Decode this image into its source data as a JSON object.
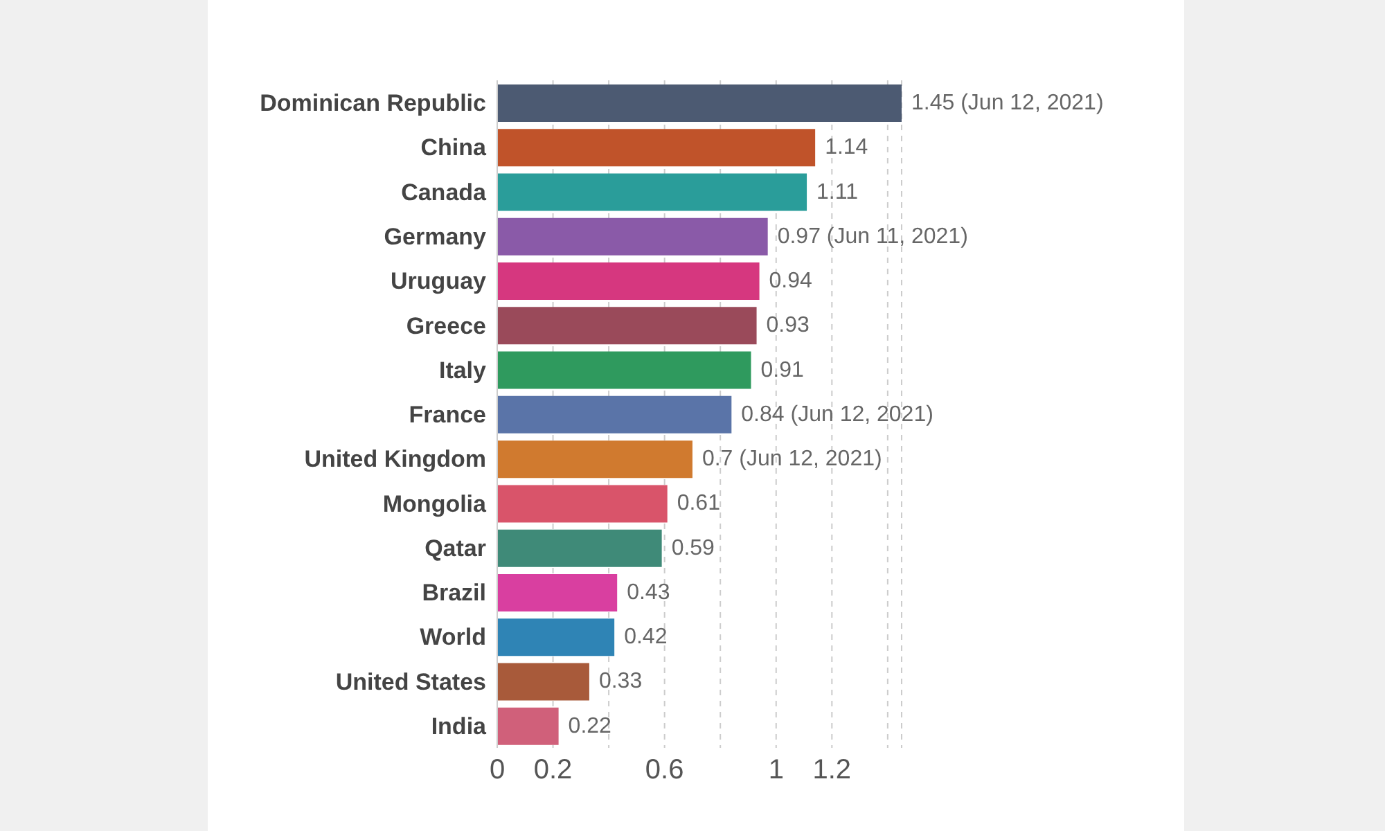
{
  "chart_data": {
    "type": "bar",
    "orientation": "horizontal",
    "categories": [
      "Dominican Republic",
      "China",
      "Canada",
      "Germany",
      "Uruguay",
      "Greece",
      "Italy",
      "France",
      "United Kingdom",
      "Mongolia",
      "Qatar",
      "Brazil",
      "World",
      "United States",
      "India"
    ],
    "values": [
      1.45,
      1.14,
      1.11,
      0.97,
      0.94,
      0.93,
      0.91,
      0.84,
      0.7,
      0.61,
      0.59,
      0.43,
      0.42,
      0.33,
      0.22
    ],
    "value_labels": [
      "1.45 (Jun 12, 2021)",
      "1.14",
      "1.11",
      "0.97 (Jun 11, 2021)",
      "0.94",
      "0.93",
      "0.91",
      "0.84 (Jun 12, 2021)",
      "0.7 (Jun 12, 2021)",
      "0.61",
      "0.59",
      "0.43",
      "0.42",
      "0.33",
      "0.22"
    ],
    "colors": [
      "#4c5a72",
      "#c0532a",
      "#2a9d9a",
      "#8a5aa8",
      "#d6377f",
      "#9a4a5a",
      "#2f9a5e",
      "#5a74a8",
      "#d07a2f",
      "#d9546a",
      "#3f8a78",
      "#d93fa0",
      "#2f84b5",
      "#a85a3a",
      "#d0607a"
    ],
    "xlim": [
      0,
      1.45
    ],
    "xticks": [
      0,
      0.2,
      {
        "value": 0.4,
        "label": null
      },
      0.6,
      {
        "value": 0.8,
        "label": null
      },
      1,
      1.2,
      {
        "value": 1.4,
        "label": null
      }
    ],
    "grid": "x"
  }
}
